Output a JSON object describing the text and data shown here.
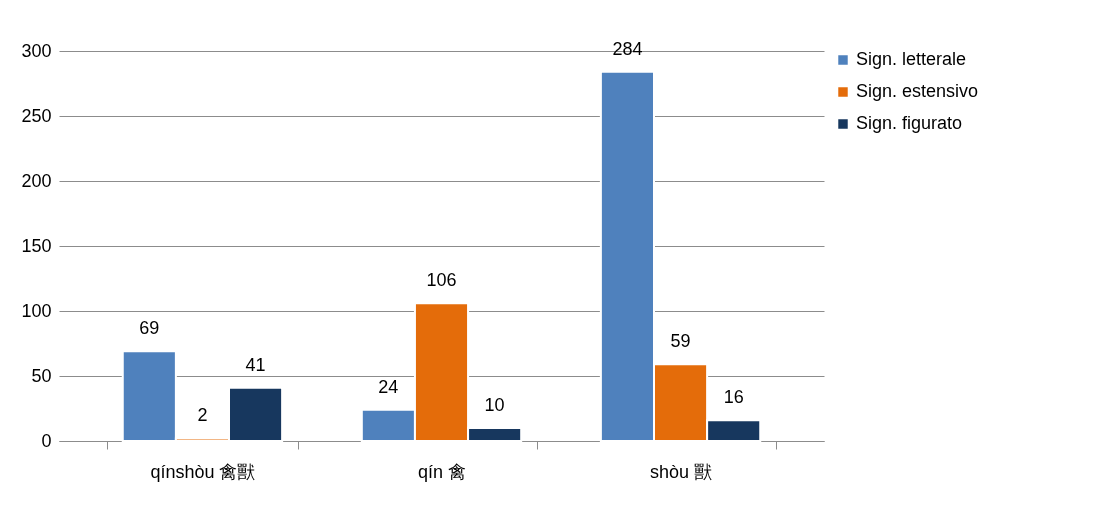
{
  "chart_data": {
    "type": "bar",
    "categories": [
      "qínshòu 禽獸",
      "qín 禽",
      "shòu 獸"
    ],
    "series": [
      {
        "name": "Sign. letterale",
        "color": "#4f81bd",
        "values": [
          69,
          24,
          284
        ]
      },
      {
        "name": "Sign. estensivo",
        "color": "#e46c0a",
        "values": [
          2,
          106,
          59
        ]
      },
      {
        "name": "Sign. figurato",
        "color": "#17375e",
        "values": [
          41,
          10,
          16
        ]
      }
    ],
    "ylim": [
      0,
      300
    ],
    "yticks": [
      0,
      50,
      100,
      150,
      200,
      250,
      300
    ],
    "grid": "y",
    "legend": "right",
    "data_labels": true
  }
}
